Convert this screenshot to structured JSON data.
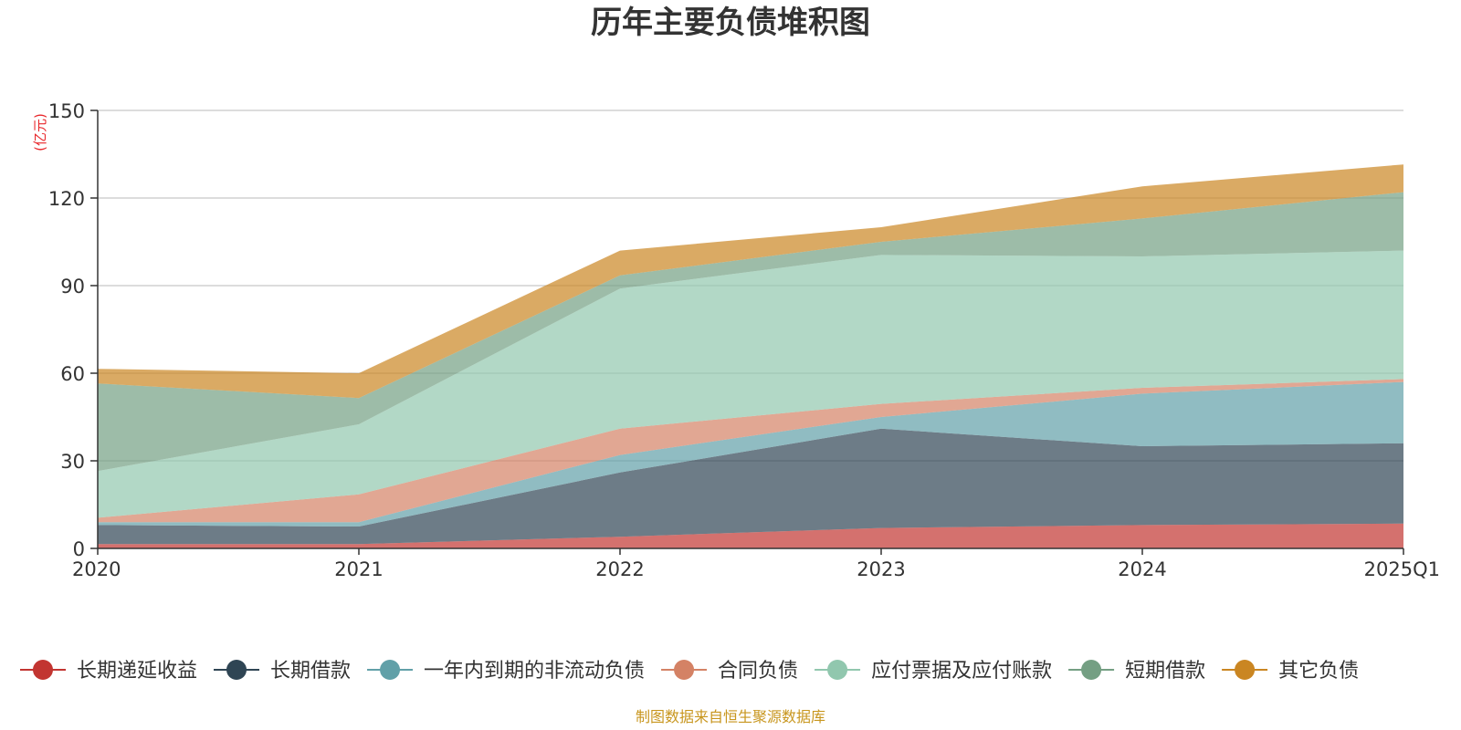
{
  "chart_data": {
    "type": "area",
    "stacked": true,
    "title": "历年主要负债堆积图",
    "unit_label": "(亿元)",
    "categories": [
      "2020",
      "2021",
      "2022",
      "2023",
      "2024",
      "2025Q1"
    ],
    "y_ticks": [
      "0",
      "30",
      "60",
      "90",
      "120",
      "150"
    ],
    "ylim": [
      0,
      150
    ],
    "grid": true,
    "legend_position": "bottom",
    "series": [
      {
        "name": "长期递延收益",
        "color": "#c23531",
        "values": [
          1.5,
          1.5,
          4.0,
          7.0,
          8.0,
          8.5
        ]
      },
      {
        "name": "长期借款",
        "color": "#2f4554",
        "values": [
          6.5,
          6.0,
          22.0,
          34.0,
          27.0,
          27.5
        ]
      },
      {
        "name": "一年内到期的非流动负债",
        "color": "#61a0a8",
        "values": [
          1.0,
          1.5,
          6.0,
          4.0,
          18.0,
          21.0
        ]
      },
      {
        "name": "合同负债",
        "color": "#d48265",
        "values": [
          1.5,
          9.5,
          9.0,
          4.5,
          2.0,
          1.0
        ]
      },
      {
        "name": "应付票据及应付账款",
        "color": "#91c7ae",
        "values": [
          16.0,
          24.0,
          48.0,
          51.0,
          45.0,
          44.0
        ]
      },
      {
        "name": "短期借款",
        "color": "#749f83",
        "values": [
          30.0,
          9.0,
          4.5,
          4.5,
          13.0,
          20.0
        ]
      },
      {
        "name": "其它负债",
        "color": "#ca8622",
        "values": [
          5.0,
          8.5,
          8.5,
          5.0,
          11.0,
          9.5
        ]
      }
    ],
    "source_note": "制图数据来自恒生聚源数据库"
  }
}
